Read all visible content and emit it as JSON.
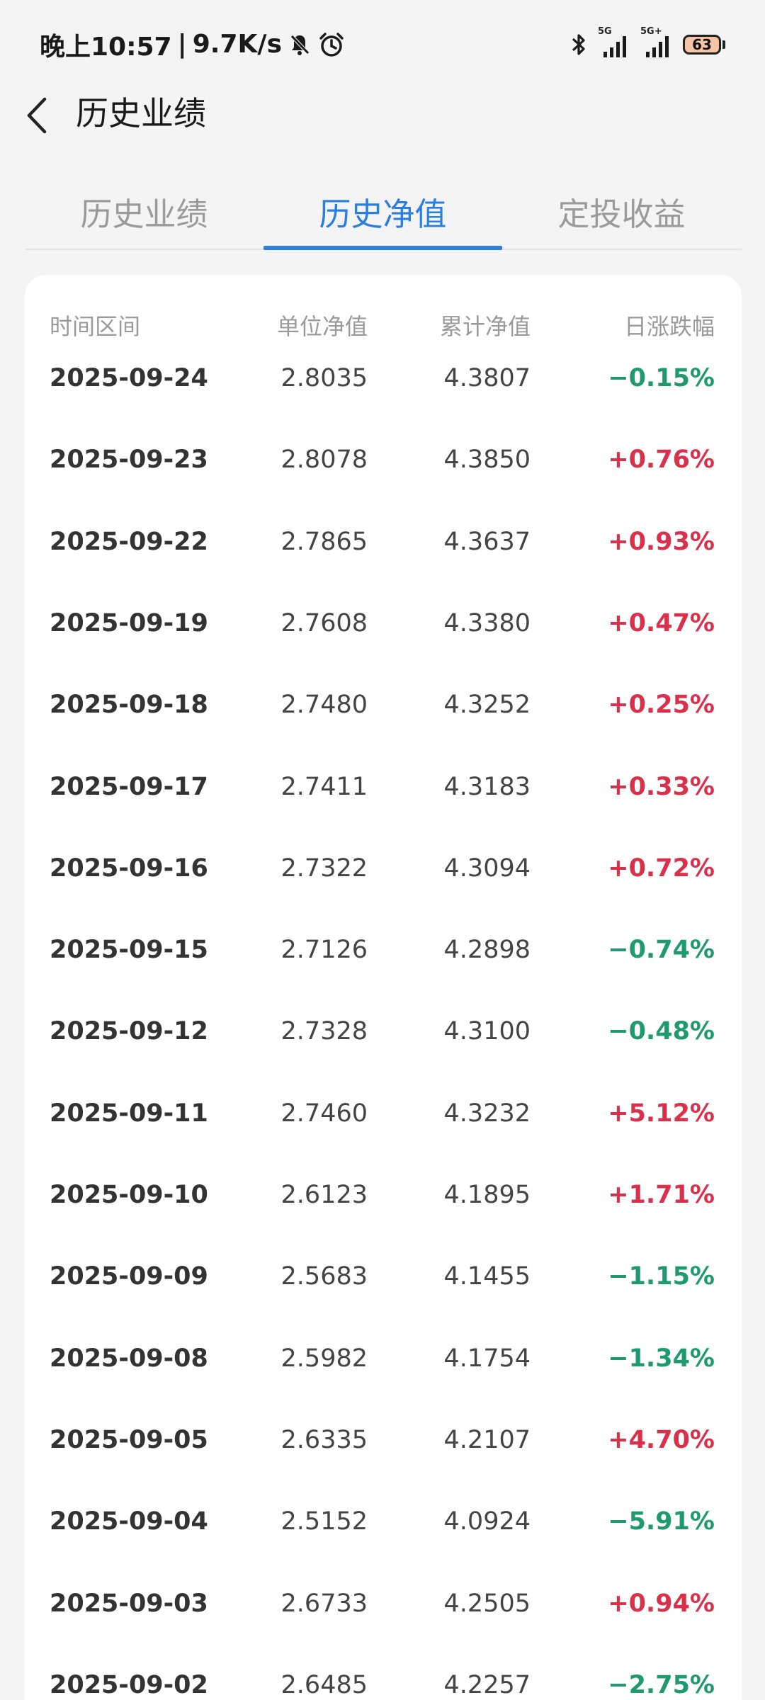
{
  "status_bar": {
    "time": "晚上10:57",
    "speed": "9.7K/s",
    "net1": "5G",
    "net2": "5G+",
    "battery": "63"
  },
  "header": {
    "title": "历史业绩"
  },
  "tabs": [
    {
      "label": "历史业绩",
      "active": false
    },
    {
      "label": "历史净值",
      "active": true
    },
    {
      "label": "定投收益",
      "active": false
    }
  ],
  "table": {
    "columns": [
      "时间区间",
      "单位净值",
      "累计净值",
      "日涨跌幅"
    ],
    "rows": [
      {
        "date": "2025-09-24",
        "unit_nav": "2.8035",
        "acc_nav": "4.3807",
        "change": "−0.15%",
        "dir": "down"
      },
      {
        "date": "2025-09-23",
        "unit_nav": "2.8078",
        "acc_nav": "4.3850",
        "change": "+0.76%",
        "dir": "up"
      },
      {
        "date": "2025-09-22",
        "unit_nav": "2.7865",
        "acc_nav": "4.3637",
        "change": "+0.93%",
        "dir": "up"
      },
      {
        "date": "2025-09-19",
        "unit_nav": "2.7608",
        "acc_nav": "4.3380",
        "change": "+0.47%",
        "dir": "up"
      },
      {
        "date": "2025-09-18",
        "unit_nav": "2.7480",
        "acc_nav": "4.3252",
        "change": "+0.25%",
        "dir": "up"
      },
      {
        "date": "2025-09-17",
        "unit_nav": "2.7411",
        "acc_nav": "4.3183",
        "change": "+0.33%",
        "dir": "up"
      },
      {
        "date": "2025-09-16",
        "unit_nav": "2.7322",
        "acc_nav": "4.3094",
        "change": "+0.72%",
        "dir": "up"
      },
      {
        "date": "2025-09-15",
        "unit_nav": "2.7126",
        "acc_nav": "4.2898",
        "change": "−0.74%",
        "dir": "down"
      },
      {
        "date": "2025-09-12",
        "unit_nav": "2.7328",
        "acc_nav": "4.3100",
        "change": "−0.48%",
        "dir": "down"
      },
      {
        "date": "2025-09-11",
        "unit_nav": "2.7460",
        "acc_nav": "4.3232",
        "change": "+5.12%",
        "dir": "up"
      },
      {
        "date": "2025-09-10",
        "unit_nav": "2.6123",
        "acc_nav": "4.1895",
        "change": "+1.71%",
        "dir": "up"
      },
      {
        "date": "2025-09-09",
        "unit_nav": "2.5683",
        "acc_nav": "4.1455",
        "change": "−1.15%",
        "dir": "down"
      },
      {
        "date": "2025-09-08",
        "unit_nav": "2.5982",
        "acc_nav": "4.1754",
        "change": "−1.34%",
        "dir": "down"
      },
      {
        "date": "2025-09-05",
        "unit_nav": "2.6335",
        "acc_nav": "4.2107",
        "change": "+4.70%",
        "dir": "up"
      },
      {
        "date": "2025-09-04",
        "unit_nav": "2.5152",
        "acc_nav": "4.0924",
        "change": "−5.91%",
        "dir": "down"
      },
      {
        "date": "2025-09-03",
        "unit_nav": "2.6733",
        "acc_nav": "4.2505",
        "change": "+0.94%",
        "dir": "up"
      },
      {
        "date": "2025-09-02",
        "unit_nav": "2.6485",
        "acc_nav": "4.2257",
        "change": "−2.75%",
        "dir": "down"
      }
    ]
  },
  "colors": {
    "accent": "#2a7ee0",
    "up": "#d9314b",
    "down": "#1e9a6e"
  }
}
